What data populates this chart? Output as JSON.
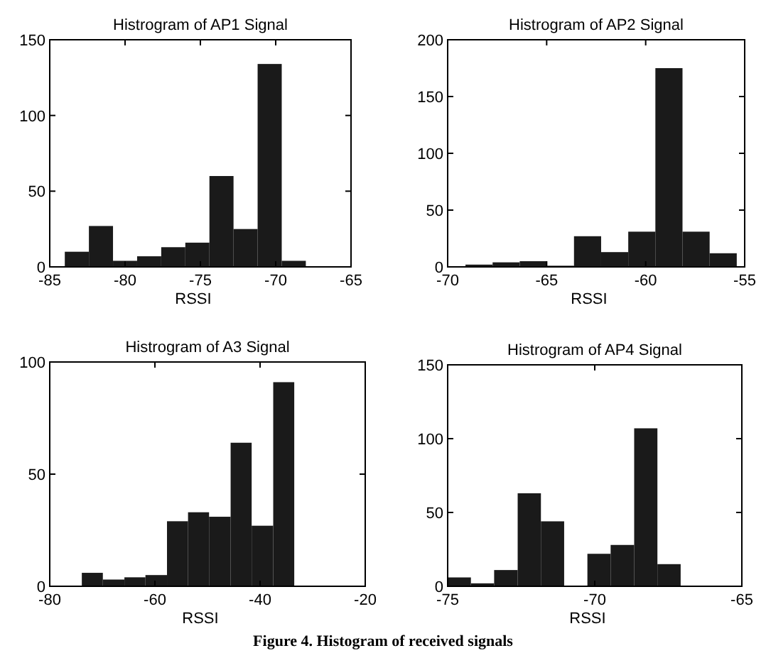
{
  "chart_data": [
    {
      "type": "histogram",
      "title": "Histrogram of AP1 Signal",
      "xlabel": "RSSI",
      "bins": [
        -84,
        -82.4,
        -80.8,
        -79.2,
        -77.6,
        -76,
        -74.4,
        -72.8,
        -71.2,
        -69.6,
        -68
      ],
      "values": [
        10,
        27,
        4,
        7,
        13,
        16,
        60,
        25,
        134,
        4
      ],
      "color": "#1a1a1a",
      "xlim": [
        -85,
        -65
      ],
      "xticks": [
        -85,
        -80,
        -75,
        -70,
        -65
      ],
      "ylim": [
        0,
        150
      ],
      "yticks": [
        0,
        50,
        100,
        150
      ]
    },
    {
      "type": "histogram",
      "title": "Histrogram of AP2 Signal",
      "xlabel": "RSSI",
      "bins": [
        -69.1,
        -67.73,
        -66.36,
        -64.99,
        -63.62,
        -62.25,
        -60.88,
        -59.51,
        -58.14,
        -56.77,
        -55.4
      ],
      "values": [
        2,
        4,
        5,
        1,
        27,
        13,
        31,
        175,
        31,
        12
      ],
      "color": "#1a1a1a",
      "xlim": [
        -70,
        -55
      ],
      "xticks": [
        -70,
        -65,
        -60,
        -55
      ],
      "ylim": [
        0,
        200
      ],
      "yticks": [
        0,
        50,
        100,
        150,
        200
      ]
    },
    {
      "type": "histogram",
      "title": "Histrogram of A3 Signal",
      "xlabel": "RSSI",
      "bins": [
        -73.9,
        -69.9,
        -65.8,
        -61.8,
        -57.7,
        -53.7,
        -49.7,
        -45.6,
        -41.6,
        -37.5,
        -33.5
      ],
      "values": [
        6,
        3,
        4,
        5,
        29,
        33,
        31,
        64,
        27,
        91
      ],
      "color": "#1a1a1a",
      "xlim": [
        -80,
        -20
      ],
      "xticks": [
        -80,
        -60,
        -40,
        -20
      ],
      "ylim": [
        0,
        100
      ],
      "yticks": [
        0,
        50,
        100
      ]
    },
    {
      "type": "histogram",
      "title": "Histrogram of AP4 Signal",
      "xlabel": "RSSI",
      "bins": [
        -75,
        -74.21,
        -73.42,
        -72.62,
        -71.83,
        -71.04,
        -70.25,
        -69.46,
        -68.66,
        -67.87,
        -67.08
      ],
      "values": [
        6,
        2,
        11,
        63,
        44,
        0,
        22,
        28,
        107,
        15
      ],
      "color": "#1a1a1a",
      "xlim": [
        -75,
        -65
      ],
      "xticks": [
        -75,
        -70,
        -65
      ],
      "ylim": [
        0,
        150
      ],
      "yticks": [
        0,
        50,
        100,
        150
      ],
      "annotations": [
        "Figure 4. Histogram of received signals"
      ]
    }
  ]
}
